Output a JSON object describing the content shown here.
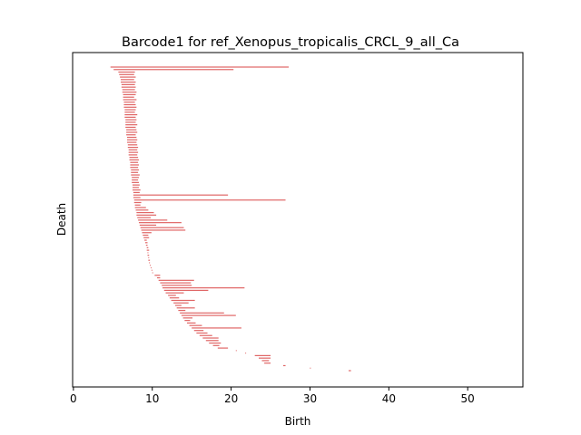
{
  "chart_data": {
    "type": "barcode",
    "title": "Barcode1 for ref_Xenopus_tropicalis_CRCL_9_all_Ca",
    "xlabel": "Birth",
    "ylabel": "Death",
    "xlim": [
      -0.1,
      57
    ],
    "xticks": [
      0,
      10,
      20,
      30,
      40,
      50
    ],
    "xtick_labels": [
      "0",
      "10",
      "20",
      "30",
      "40",
      "50"
    ],
    "grid": false,
    "bar_color": "#e06666",
    "bars": [
      {
        "b": 4.7,
        "d": 27.3
      },
      {
        "b": 5.1,
        "d": 20.3
      },
      {
        "b": 5.7,
        "d": 7.8
      },
      {
        "b": 5.8,
        "d": 7.7
      },
      {
        "b": 5.9,
        "d": 7.9
      },
      {
        "b": 6.0,
        "d": 7.7
      },
      {
        "b": 6.0,
        "d": 7.9
      },
      {
        "b": 6.1,
        "d": 7.8
      },
      {
        "b": 6.1,
        "d": 7.9
      },
      {
        "b": 6.2,
        "d": 7.8
      },
      {
        "b": 6.2,
        "d": 8.0
      },
      {
        "b": 6.3,
        "d": 7.9
      },
      {
        "b": 6.3,
        "d": 7.7
      },
      {
        "b": 6.3,
        "d": 8.0
      },
      {
        "b": 6.4,
        "d": 7.8
      },
      {
        "b": 6.4,
        "d": 7.9
      },
      {
        "b": 6.4,
        "d": 8.0
      },
      {
        "b": 6.5,
        "d": 7.9
      },
      {
        "b": 6.5,
        "d": 7.8
      },
      {
        "b": 6.5,
        "d": 8.1
      },
      {
        "b": 6.5,
        "d": 7.9
      },
      {
        "b": 6.6,
        "d": 8.0
      },
      {
        "b": 6.6,
        "d": 7.9
      },
      {
        "b": 6.6,
        "d": 8.1
      },
      {
        "b": 6.6,
        "d": 7.9
      },
      {
        "b": 6.7,
        "d": 8.0
      },
      {
        "b": 6.7,
        "d": 8.1
      },
      {
        "b": 6.7,
        "d": 7.9
      },
      {
        "b": 6.8,
        "d": 8.0
      },
      {
        "b": 6.8,
        "d": 8.1
      },
      {
        "b": 6.8,
        "d": 8.0
      },
      {
        "b": 6.9,
        "d": 8.1
      },
      {
        "b": 6.9,
        "d": 8.2
      },
      {
        "b": 7.0,
        "d": 8.1
      },
      {
        "b": 7.0,
        "d": 8.2
      },
      {
        "b": 7.0,
        "d": 8.1
      },
      {
        "b": 7.1,
        "d": 8.2
      },
      {
        "b": 7.1,
        "d": 8.3
      },
      {
        "b": 7.2,
        "d": 8.2
      },
      {
        "b": 7.2,
        "d": 8.3
      },
      {
        "b": 7.2,
        "d": 8.2
      },
      {
        "b": 7.3,
        "d": 8.3
      },
      {
        "b": 7.3,
        "d": 8.2
      },
      {
        "b": 7.3,
        "d": 8.4
      },
      {
        "b": 7.4,
        "d": 8.3
      },
      {
        "b": 7.4,
        "d": 8.2
      },
      {
        "b": 7.4,
        "d": 8.3
      },
      {
        "b": 7.5,
        "d": 8.4
      },
      {
        "b": 7.5,
        "d": 8.3
      },
      {
        "b": 7.5,
        "d": 8.5
      },
      {
        "b": 7.6,
        "d": 8.4
      },
      {
        "b": 7.6,
        "d": 19.6
      },
      {
        "b": 7.6,
        "d": 8.5
      },
      {
        "b": 7.7,
        "d": 26.9
      },
      {
        "b": 7.7,
        "d": 8.6
      },
      {
        "b": 7.8,
        "d": 8.5
      },
      {
        "b": 7.8,
        "d": 9.2
      },
      {
        "b": 7.9,
        "d": 9.5
      },
      {
        "b": 8.0,
        "d": 10.2
      },
      {
        "b": 8.0,
        "d": 10.5
      },
      {
        "b": 8.1,
        "d": 9.8
      },
      {
        "b": 8.2,
        "d": 11.9
      },
      {
        "b": 8.3,
        "d": 13.7
      },
      {
        "b": 8.4,
        "d": 10.5
      },
      {
        "b": 8.5,
        "d": 14.0
      },
      {
        "b": 8.6,
        "d": 14.2
      },
      {
        "b": 8.7,
        "d": 9.9
      },
      {
        "b": 8.8,
        "d": 9.5
      },
      {
        "b": 8.9,
        "d": 9.6
      },
      {
        "b": 9.0,
        "d": 9.3
      },
      {
        "b": 9.1,
        "d": 9.4
      },
      {
        "b": 9.2,
        "d": 9.4
      },
      {
        "b": 9.3,
        "d": 9.5
      },
      {
        "b": 9.3,
        "d": 9.6
      },
      {
        "b": 9.4,
        "d": 9.5
      },
      {
        "b": 9.4,
        "d": 9.6
      },
      {
        "b": 9.5,
        "d": 9.6
      },
      {
        "b": 9.5,
        "d": 9.7
      },
      {
        "b": 9.6,
        "d": 9.7
      },
      {
        "b": 9.7,
        "d": 9.8
      },
      {
        "b": 9.8,
        "d": 9.9
      },
      {
        "b": 9.9,
        "d": 10.0
      },
      {
        "b": 10.0,
        "d": 10.1
      },
      {
        "b": 10.3,
        "d": 11.0
      },
      {
        "b": 10.6,
        "d": 11.0
      },
      {
        "b": 10.8,
        "d": 15.3
      },
      {
        "b": 11.0,
        "d": 14.9
      },
      {
        "b": 11.2,
        "d": 15.0
      },
      {
        "b": 11.3,
        "d": 21.7
      },
      {
        "b": 11.5,
        "d": 17.1
      },
      {
        "b": 11.7,
        "d": 14.0
      },
      {
        "b": 12.0,
        "d": 13.0
      },
      {
        "b": 12.2,
        "d": 13.4
      },
      {
        "b": 12.4,
        "d": 15.4
      },
      {
        "b": 12.7,
        "d": 14.6
      },
      {
        "b": 12.9,
        "d": 13.7
      },
      {
        "b": 13.1,
        "d": 15.4
      },
      {
        "b": 13.3,
        "d": 14.2
      },
      {
        "b": 13.5,
        "d": 19.1
      },
      {
        "b": 13.7,
        "d": 20.6
      },
      {
        "b": 13.9,
        "d": 15.1
      },
      {
        "b": 14.1,
        "d": 14.8
      },
      {
        "b": 14.4,
        "d": 15.5
      },
      {
        "b": 14.7,
        "d": 16.3
      },
      {
        "b": 15.0,
        "d": 21.3
      },
      {
        "b": 15.3,
        "d": 16.5
      },
      {
        "b": 15.6,
        "d": 17.0
      },
      {
        "b": 16.0,
        "d": 17.6
      },
      {
        "b": 16.4,
        "d": 18.4
      },
      {
        "b": 16.8,
        "d": 18.4
      },
      {
        "b": 17.2,
        "d": 18.7
      },
      {
        "b": 17.7,
        "d": 18.5
      },
      {
        "b": 18.3,
        "d": 19.6
      },
      {
        "b": 20.6,
        "d": 20.7
      },
      {
        "b": 21.8,
        "d": 21.9
      },
      {
        "b": 23.0,
        "d": 25.0
      },
      {
        "b": 23.5,
        "d": 25.0
      },
      {
        "b": 23.9,
        "d": 24.8
      },
      {
        "b": 24.2,
        "d": 25.0
      },
      {
        "b": 26.6,
        "d": 26.9
      },
      {
        "b": 30.0,
        "d": 30.1
      },
      {
        "b": 34.9,
        "d": 35.2
      }
    ]
  }
}
